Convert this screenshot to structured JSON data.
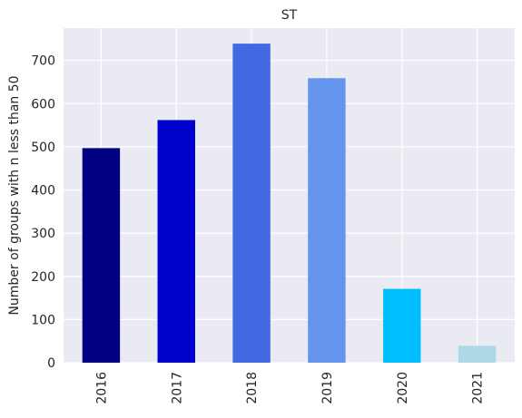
{
  "chart_data": {
    "type": "bar",
    "title": "ST",
    "xlabel": "",
    "ylabel": "Number of groups with n less than 50",
    "categories": [
      "2016",
      "2017",
      "2018",
      "2019",
      "2020",
      "2021"
    ],
    "values": [
      497,
      562,
      739,
      659,
      171,
      39
    ],
    "colors": [
      "#000080",
      "#0000CD",
      "#4169E1",
      "#6495ED",
      "#00BFFF",
      "#ADD8E6"
    ],
    "ylim": [
      0,
      775
    ],
    "yticks": [
      0,
      100,
      200,
      300,
      400,
      500,
      600,
      700
    ],
    "grid": true,
    "legend": "none",
    "background": "#EAEAF2",
    "grid_color": "#FFFFFF"
  }
}
